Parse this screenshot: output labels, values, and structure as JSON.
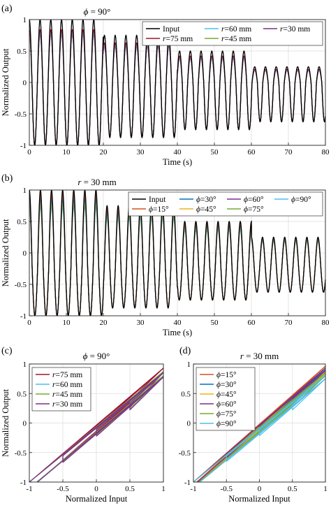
{
  "chart_data": [
    {
      "panel": "(a)",
      "type": "line",
      "title_symbol": "ϕ",
      "title_value": " = 90°",
      "xlabel": "Time (s)",
      "ylabel": "Normalized Output",
      "xlim": [
        0,
        80
      ],
      "ylim": [
        -1,
        1
      ],
      "xticks": [
        0,
        10,
        20,
        30,
        40,
        50,
        60,
        70,
        80
      ],
      "yticks": [
        -1,
        -0.5,
        0,
        0.5,
        1
      ],
      "grid": true,
      "legend_location": "top-right",
      "legend_columns": 3,
      "signal": {
        "period_s": 2.9,
        "offset": 0,
        "segments": [
          [
            0,
            20,
            1.0
          ],
          [
            20,
            40,
            0.75
          ],
          [
            40,
            60,
            0.5
          ],
          [
            60,
            80,
            0.25
          ]
        ]
      },
      "series": [
        {
          "name": "Input",
          "sym": "",
          "val": "Input",
          "color": "#000000",
          "peak_ratio": 1.0,
          "valley_ratio": 1.0,
          "peaks_at_segment_amplitude": [
            1.0,
            0.75,
            0.5,
            0.25
          ],
          "valleys": -1.0
        },
        {
          "name": "r=75 mm",
          "sym": "r",
          "val": "=75 mm",
          "color": "#a2142f",
          "peak_ratio": 0.84,
          "valley_ratio": 1.0,
          "peaks_at_segment_amplitude": [
            0.84,
            0.63,
            0.42,
            0.1
          ],
          "valleys": -1.0
        },
        {
          "name": "r=60 mm",
          "sym": "r",
          "val": "=60 mm",
          "color": "#4dbeee",
          "peak_ratio": 0.78,
          "valley_ratio": 1.0,
          "peaks_at_segment_amplitude": [
            0.78,
            0.58,
            0.38,
            0.05
          ],
          "valleys": -1.0
        },
        {
          "name": "r=45 mm",
          "sym": "r",
          "val": "=45 mm",
          "color": "#77ac30",
          "peak_ratio": 0.8,
          "valley_ratio": 1.0,
          "peaks_at_segment_amplitude": [
            0.8,
            0.6,
            0.4,
            0.07
          ],
          "valleys": -1.0
        },
        {
          "name": "r=30 mm",
          "sym": "r",
          "val": "=30 mm",
          "color": "#7e2f8e",
          "peak_ratio": 0.76,
          "valley_ratio": 1.0,
          "peaks_at_segment_amplitude": [
            0.76,
            0.57,
            0.37,
            0.04
          ],
          "valleys": -1.0
        }
      ]
    },
    {
      "panel": "(b)",
      "type": "line",
      "title_symbol": "r",
      "title_value": " = 30 mm",
      "xlabel": "Time (s)",
      "ylabel": "Normalized Output",
      "xlim": [
        0,
        80
      ],
      "ylim": [
        -1,
        1
      ],
      "xticks": [
        0,
        10,
        20,
        30,
        40,
        50,
        60,
        70,
        80
      ],
      "yticks": [
        -1,
        -0.5,
        0,
        0.5,
        1
      ],
      "grid": true,
      "legend_location": "top-right",
      "legend_columns": 4,
      "signal": {
        "period_s": 3.0,
        "offset": -0.22,
        "segments": [
          [
            0,
            20,
            1.0
          ],
          [
            20,
            40,
            0.75
          ],
          [
            40,
            60,
            0.5
          ],
          [
            60,
            80,
            0.25
          ]
        ]
      },
      "series": [
        {
          "name": "Input",
          "sym": "",
          "val": "Input",
          "color": "#000000",
          "peak_ratio": 1.0,
          "valley_ratio": 1.0
        },
        {
          "name": "ϕ=15°",
          "sym": "ϕ",
          "val": "=15°",
          "color": "#d95319",
          "peak_ratio": 0.93,
          "valley_ratio": 1.0
        },
        {
          "name": "ϕ=30°",
          "sym": "ϕ",
          "val": "=30°",
          "color": "#0072bd",
          "peak_ratio": 0.84,
          "valley_ratio": 1.0
        },
        {
          "name": "ϕ=45°",
          "sym": "ϕ",
          "val": "=45°",
          "color": "#edb120",
          "peak_ratio": 0.81,
          "valley_ratio": 1.0
        },
        {
          "name": "ϕ=60°",
          "sym": "ϕ",
          "val": "=60°",
          "color": "#7e2f8e",
          "peak_ratio": 0.89,
          "valley_ratio": 1.0
        },
        {
          "name": "ϕ=75°",
          "sym": "ϕ",
          "val": "=75°",
          "color": "#77ac30",
          "peak_ratio": 0.77,
          "valley_ratio": 1.0
        },
        {
          "name": "ϕ=90°",
          "sym": "ϕ",
          "val": "=90°",
          "color": "#4dbeee",
          "peak_ratio": 0.72,
          "valley_ratio": 1.0
        }
      ]
    },
    {
      "panel": "(c)",
      "type": "line",
      "title_symbol": "ϕ",
      "title_value": " = 90°",
      "xlabel": "Normalized Input",
      "ylabel": "Normalized Output",
      "xlim": [
        -1,
        1
      ],
      "ylim": [
        -1,
        1
      ],
      "xticks": [
        -1,
        -0.5,
        0,
        0.5,
        1
      ],
      "yticks": [
        -1,
        -0.5,
        0,
        0.5,
        1
      ],
      "grid": true,
      "legend_location": "top-left",
      "legend_columns": 1,
      "loop_levels": [
        -1.0,
        -0.5,
        0.0,
        0.5
      ],
      "series": [
        {
          "name": "r=75 mm",
          "sym": "r",
          "val": "=75 mm",
          "color": "#a2142f",
          "end_value": 0.85,
          "loop_width": 0.2
        },
        {
          "name": "r=60 mm",
          "sym": "r",
          "val": "=60 mm",
          "color": "#4dbeee",
          "end_value": 0.78,
          "loop_width": 0.17
        },
        {
          "name": "r=45 mm",
          "sym": "r",
          "val": "=45 mm",
          "color": "#77ac30",
          "end_value": 0.8,
          "loop_width": 0.18
        },
        {
          "name": "r=30 mm",
          "sym": "r",
          "val": "=30 mm",
          "color": "#7e2f8e",
          "end_value": 0.78,
          "loop_width": 0.19
        }
      ]
    },
    {
      "panel": "(d)",
      "type": "line",
      "title_symbol": "r",
      "title_value": " = 30 mm",
      "xlabel": "Normalized Input",
      "ylabel": "",
      "xlim": [
        -1,
        1
      ],
      "ylim": [
        -1,
        1
      ],
      "xticks": [
        -1,
        -0.5,
        0,
        0.5,
        1
      ],
      "yticks": [
        -1,
        -0.5,
        0,
        0.5,
        1
      ],
      "grid": true,
      "legend_location": "top-left",
      "legend_columns": 1,
      "loop_levels": [
        -1.0,
        -0.5,
        0.0,
        0.5
      ],
      "series": [
        {
          "name": "ϕ=15°",
          "sym": "ϕ",
          "val": "=15°",
          "color": "#d95319",
          "end_value": 0.93,
          "loop_width": 0.08
        },
        {
          "name": "ϕ=30°",
          "sym": "ϕ",
          "val": "=30°",
          "color": "#0072bd",
          "end_value": 0.86,
          "loop_width": 0.1
        },
        {
          "name": "ϕ=45°",
          "sym": "ϕ",
          "val": "=45°",
          "color": "#edb120",
          "end_value": 0.83,
          "loop_width": 0.11
        },
        {
          "name": "ϕ=60°",
          "sym": "ϕ",
          "val": "=60°",
          "color": "#7e2f8e",
          "end_value": 0.89,
          "loop_width": 0.1
        },
        {
          "name": "ϕ=75°",
          "sym": "ϕ",
          "val": "=75°",
          "color": "#77ac30",
          "end_value": 0.8,
          "loop_width": 0.13
        },
        {
          "name": "ϕ=90°",
          "sym": "ϕ",
          "val": "=90°",
          "color": "#4dbeee",
          "end_value": 0.75,
          "loop_width": 0.15
        }
      ]
    }
  ]
}
